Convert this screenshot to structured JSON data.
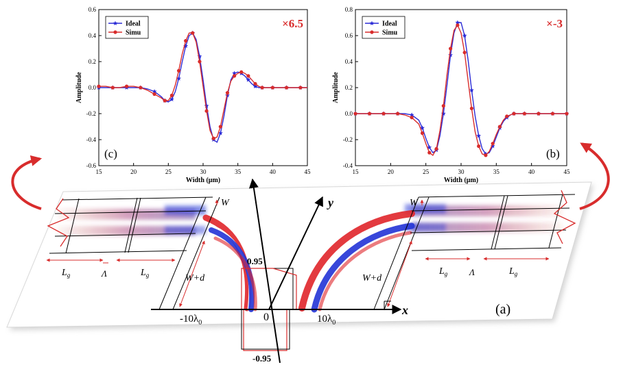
{
  "chart_data": [
    {
      "panel": "(c)",
      "type": "line",
      "multiplier": "×6.5",
      "xlabel": "Width (μm)",
      "ylabel": "Amplitude",
      "xlim": [
        15,
        45
      ],
      "ylim": [
        -0.6,
        0.6
      ],
      "xticks": [
        "15",
        "20",
        "25",
        "30",
        "35",
        "40",
        "45"
      ],
      "yticks": [
        "-0.6",
        "-0.4",
        "-0.2",
        "0.0",
        "0.2",
        "0.4",
        "0.6"
      ],
      "grid": false,
      "legend": "top-left",
      "series": [
        {
          "name": "Ideal",
          "color": "#2b2bd6",
          "marker": "star",
          "x": [
            15,
            16,
            17,
            18,
            19,
            20,
            21,
            22,
            23,
            24,
            24.5,
            25,
            25.5,
            26,
            26.5,
            27,
            27.5,
            28,
            28.5,
            29,
            29.5,
            30,
            30.5,
            31,
            31.5,
            32,
            32.5,
            33,
            33.5,
            34,
            34.5,
            35,
            35.5,
            36,
            36.5,
            37,
            37.5,
            38,
            38.5,
            39,
            40,
            41,
            42,
            43,
            44,
            45
          ],
          "y": [
            0,
            0,
            0,
            0,
            0,
            0,
            0,
            -0.01,
            -0.03,
            -0.07,
            -0.1,
            -0.11,
            -0.09,
            -0.03,
            0.07,
            0.2,
            0.32,
            0.4,
            0.42,
            0.37,
            0.24,
            0.06,
            -0.14,
            -0.3,
            -0.4,
            -0.42,
            -0.35,
            -0.22,
            -0.06,
            0.06,
            0.11,
            0.12,
            0.11,
            0.09,
            0.06,
            0.03,
            0.01,
            0,
            0,
            0,
            0,
            0,
            0,
            0,
            0,
            0
          ]
        },
        {
          "name": "Simu",
          "color": "#d82c2c",
          "marker": "circle",
          "x": [
            15,
            16,
            17,
            18,
            19,
            20,
            21,
            22,
            23,
            24,
            24.5,
            25,
            25.5,
            26,
            26.5,
            27,
            27.5,
            28,
            28.5,
            29,
            29.5,
            30,
            30.5,
            31,
            31.5,
            32,
            32.5,
            33,
            33.5,
            34,
            34.5,
            35,
            35.5,
            36,
            36.5,
            37,
            37.5,
            38,
            38.5,
            39,
            40,
            41,
            42,
            43,
            44,
            45
          ],
          "y": [
            0.01,
            0.01,
            0,
            0,
            0.01,
            0.01,
            0,
            -0.02,
            -0.05,
            -0.08,
            -0.1,
            -0.1,
            -0.06,
            0.02,
            0.13,
            0.26,
            0.36,
            0.42,
            0.42,
            0.35,
            0.2,
            0.01,
            -0.18,
            -0.33,
            -0.39,
            -0.38,
            -0.3,
            -0.17,
            -0.04,
            0.05,
            0.09,
            0.11,
            0.12,
            0.11,
            0.09,
            0.06,
            0.03,
            0.01,
            0,
            0,
            0,
            0,
            0,
            0,
            0,
            0
          ]
        }
      ]
    },
    {
      "panel": "(b)",
      "type": "line",
      "multiplier": "×-3",
      "xlabel": "Width (μm)",
      "ylabel": "Amplitude",
      "xlim": [
        15,
        45
      ],
      "ylim": [
        -0.4,
        0.8
      ],
      "xticks": [
        "15",
        "20",
        "25",
        "30",
        "35",
        "40",
        "45"
      ],
      "yticks": [
        "-0.4",
        "-0.2",
        "0.0",
        "0.2",
        "0.4",
        "0.6",
        "0.8"
      ],
      "grid": false,
      "legend": "top-left",
      "series": [
        {
          "name": "Ideal",
          "color": "#2b2bd6",
          "marker": "star",
          "x": [
            15,
            16,
            17,
            18,
            19,
            20,
            21,
            22,
            23,
            24,
            24.5,
            25,
            25.5,
            26,
            26.5,
            27,
            27.5,
            28,
            28.5,
            29,
            29.5,
            30,
            30.5,
            31,
            31.5,
            32,
            32.5,
            33,
            33.5,
            34,
            34.5,
            35,
            35.5,
            36,
            36.5,
            37,
            37.5,
            38,
            39,
            40,
            41,
            42,
            43,
            44,
            45
          ],
          "y": [
            0,
            0,
            0,
            0,
            0,
            0,
            0,
            0,
            -0.01,
            -0.05,
            -0.11,
            -0.19,
            -0.26,
            -0.3,
            -0.28,
            -0.17,
            0,
            0.22,
            0.45,
            0.62,
            0.7,
            0.7,
            0.6,
            0.41,
            0.18,
            -0.02,
            -0.17,
            -0.27,
            -0.31,
            -0.3,
            -0.25,
            -0.18,
            -0.11,
            -0.06,
            -0.03,
            -0.01,
            0,
            0,
            0,
            0,
            0,
            0,
            0,
            0,
            0
          ]
        },
        {
          "name": "Simu",
          "color": "#d82c2c",
          "marker": "circle",
          "x": [
            15,
            16,
            17,
            18,
            19,
            20,
            21,
            22,
            23,
            24,
            24.5,
            25,
            25.5,
            26,
            26.5,
            27,
            27.5,
            28,
            28.5,
            29,
            29.5,
            30,
            30.5,
            31,
            31.5,
            32,
            32.5,
            33,
            33.5,
            34,
            34.5,
            35,
            35.5,
            36,
            36.5,
            37,
            37.5,
            38,
            39,
            40,
            41,
            42,
            43,
            44,
            45
          ],
          "y": [
            0,
            0,
            0,
            0,
            0,
            0,
            0,
            -0.01,
            -0.03,
            -0.08,
            -0.15,
            -0.23,
            -0.3,
            -0.32,
            -0.27,
            -0.13,
            0.06,
            0.3,
            0.5,
            0.64,
            0.68,
            0.62,
            0.47,
            0.25,
            0.04,
            -0.14,
            -0.25,
            -0.31,
            -0.32,
            -0.29,
            -0.23,
            -0.16,
            -0.1,
            -0.05,
            -0.02,
            -0.01,
            0,
            0,
            0,
            0,
            0,
            0,
            0,
            0,
            0
          ]
        }
      ]
    }
  ],
  "diagram": {
    "panel_label": "(a)",
    "axis_x": "x",
    "axis_y": "y",
    "origin": "0",
    "tick_left_main": "-10λ",
    "tick_left_sub": "0",
    "tick_right_main": "10λ",
    "tick_right_sub": "0",
    "top_value": "0.95",
    "bottom_value": "-0.95",
    "left_labels": {
      "W": "W",
      "Wd": "W+d",
      "Lg1_main": "L",
      "Lg1_sub": "g",
      "Lg2_main": "L",
      "Lg2_sub": "g",
      "Lambda": "Λ"
    },
    "right_labels": {
      "W": "W",
      "Wd": "W+d",
      "Lg1_main": "L",
      "Lg1_sub": "g",
      "Lg2_main": "L",
      "Lg2_sub": "g",
      "Lambda": "Λ"
    }
  },
  "colors": {
    "ideal": "#2b2bd6",
    "simu": "#d82c2c",
    "arrow": "#d82c2c",
    "field_red": "#e0252a",
    "field_blue": "#2233d6"
  }
}
